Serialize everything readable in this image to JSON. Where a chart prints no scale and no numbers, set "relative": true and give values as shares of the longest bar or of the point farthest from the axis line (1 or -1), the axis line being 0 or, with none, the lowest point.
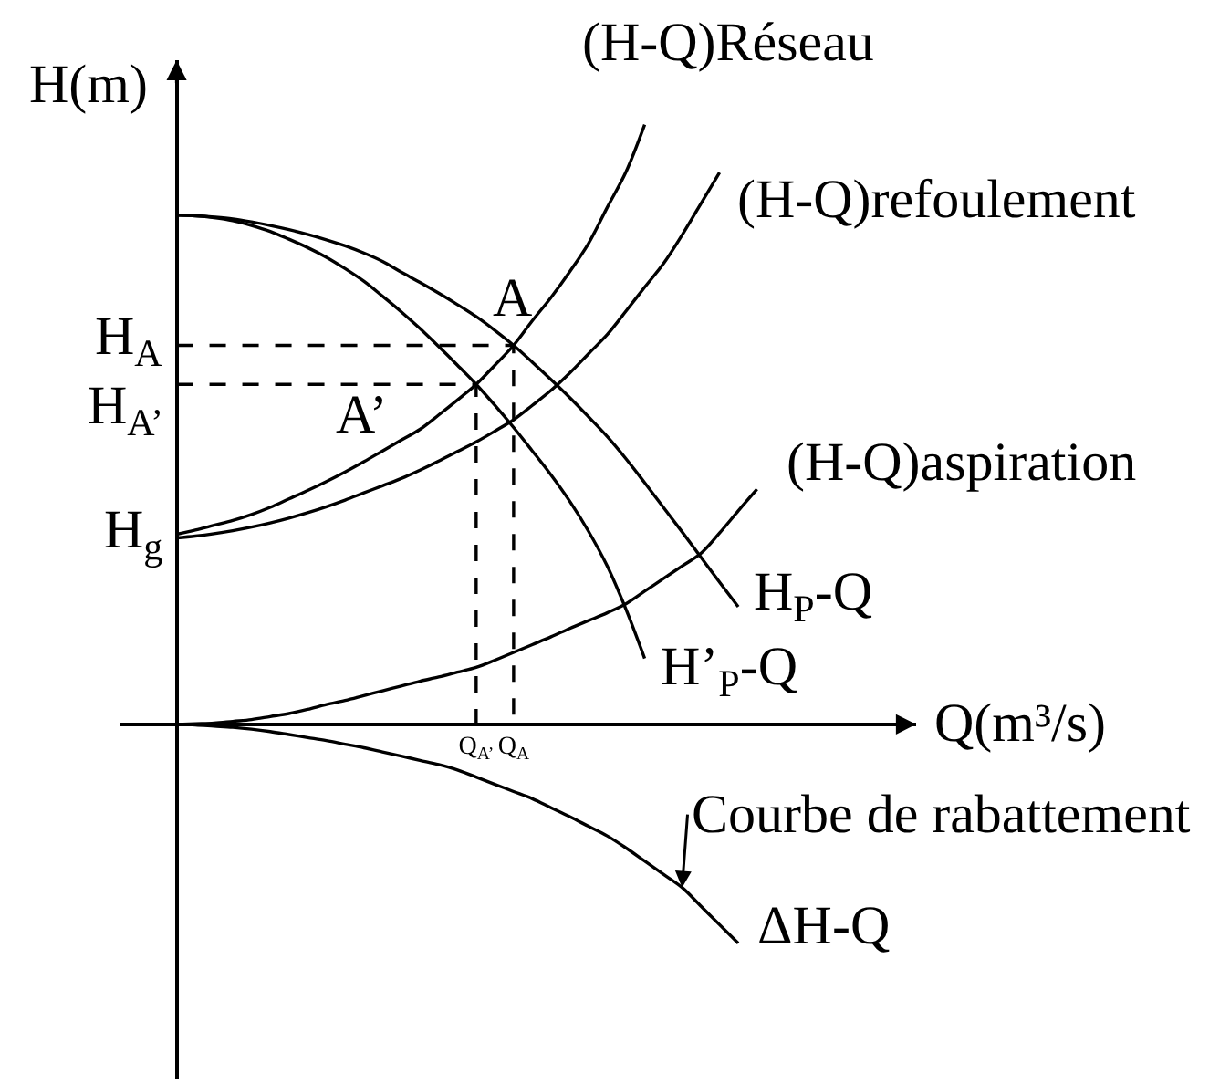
{
  "chart_data": {
    "type": "line",
    "relative": true,
    "xlabel": "Q(m³/s)",
    "ylabel": "H(m)",
    "line_style": "solid",
    "marker": "none",
    "legend": false,
    "categories": [
      null,
      null,
      null,
      null,
      null,
      null,
      null,
      null,
      null,
      null,
      null,
      null,
      null,
      null,
      null,
      null,
      "Q$_{A’}$",
      null,
      "Q$_{A}$",
      null,
      null,
      null,
      null,
      null,
      null,
      null,
      null,
      null,
      null,
      null,
      null,
      null
    ],
    "series": [
      {
        "name": "H$_{P}$-Q",
        "color": "#000000",
        "values": [
          0.849,
          0.848,
          0.846,
          0.843,
          0.838,
          0.832,
          0.825,
          0.817,
          0.808,
          0.798,
          0.786,
          0.772,
          0.754,
          0.737,
          0.719,
          0.7,
          0.68,
          0.657,
          0.632,
          0.604,
          0.575,
          0.545,
          0.513,
          0.48,
          0.443,
          0.403,
          0.362,
          0.321,
          0.279,
          0.237,
          0.196,
          null
        ]
      },
      {
        "name": "H’$_{P}$-Q",
        "color": "#000000",
        "values": [
          0.849,
          0.848,
          0.845,
          0.84,
          0.832,
          0.822,
          0.809,
          0.795,
          0.779,
          0.76,
          0.739,
          0.714,
          0.688,
          0.66,
          0.63,
          0.599,
          0.567,
          0.532,
          0.495,
          0.456,
          0.416,
          0.372,
          0.322,
          0.264,
          0.192,
          0.11,
          null,
          null,
          null,
          null,
          null,
          null
        ]
      },
      {
        "name": "(H-Q)Réseau",
        "color": "#000000",
        "values": [
          0.317,
          0.324,
          0.332,
          0.34,
          0.35,
          0.362,
          0.376,
          0.39,
          0.405,
          0.421,
          0.438,
          0.456,
          0.474,
          0.492,
          0.516,
          0.541,
          0.567,
          0.599,
          0.632,
          0.673,
          0.712,
          0.755,
          0.802,
          0.862,
          0.921,
          1.0,
          null,
          null,
          null,
          null,
          null,
          null
        ]
      },
      {
        "name": "(H-Q)refoulement",
        "color": "#000000",
        "values": [
          0.311,
          0.314,
          0.318,
          0.323,
          0.329,
          0.336,
          0.344,
          0.353,
          0.363,
          0.374,
          0.386,
          0.398,
          0.41,
          0.424,
          0.439,
          0.455,
          0.471,
          0.489,
          0.508,
          0.532,
          0.557,
          0.586,
          0.618,
          0.65,
          0.689,
          0.729,
          0.768,
          0.816,
          0.868,
          0.92,
          null,
          null
        ]
      },
      {
        "name": "(H-Q)aspiration",
        "color": "#000000",
        "values": [
          0,
          0.001,
          0.002,
          0.005,
          0.008,
          0.013,
          0.018,
          0.025,
          0.033,
          0.04,
          0.048,
          0.056,
          0.064,
          0.072,
          0.079,
          0.087,
          0.095,
          0.107,
          0.12,
          0.133,
          0.146,
          0.16,
          0.173,
          0.186,
          0.201,
          0.222,
          0.243,
          0.264,
          0.285,
          0.319,
          0.356,
          0.392
        ]
      },
      {
        "name": "ΔH-Q",
        "color": "#000000",
        "values": [
          0,
          -0.001,
          -0.003,
          -0.005,
          -0.008,
          -0.012,
          -0.017,
          -0.022,
          -0.027,
          -0.033,
          -0.039,
          -0.046,
          -0.053,
          -0.06,
          -0.067,
          -0.076,
          -0.088,
          -0.1,
          -0.112,
          -0.124,
          -0.139,
          -0.154,
          -0.17,
          -0.186,
          -0.206,
          -0.228,
          -0.25,
          -0.272,
          -0.303,
          -0.334,
          -0.365,
          null
        ]
      },
      {
        "type": "step",
        "line_style": "dashed",
        "color": "#000000",
        "values": [
          0.632,
          0.632,
          0.632,
          0.632,
          0.632,
          0.632,
          0.632,
          0.632,
          0.632,
          0.632,
          0.632,
          0.632,
          0.632,
          0.632,
          0.632,
          0.632,
          0.632,
          0.632,
          0,
          null,
          null,
          null,
          null,
          null,
          null,
          null,
          null,
          null,
          null,
          null,
          null,
          null
        ]
      },
      {
        "type": "step",
        "line_style": "dashed",
        "color": "#000000",
        "values": [
          0.567,
          0.567,
          0.567,
          0.567,
          0.567,
          0.567,
          0.567,
          0.567,
          0.567,
          0.567,
          0.567,
          0.567,
          0.567,
          0.567,
          0.567,
          0.567,
          0,
          null,
          null,
          null,
          null,
          null,
          null,
          null,
          null,
          null,
          null,
          null,
          null,
          null,
          null,
          null
        ]
      }
    ],
    "annotations": [
      {
        "text": "A",
        "x": "Q$_{A}$",
        "y": 0.632
      },
      {
        "text": "A’",
        "x": "Q$_{A’}$",
        "y": 0.567
      },
      "H$_{A}$",
      "H$_{A’}$",
      "H$_{g}$",
      "Courbe de rabattement"
    ]
  }
}
